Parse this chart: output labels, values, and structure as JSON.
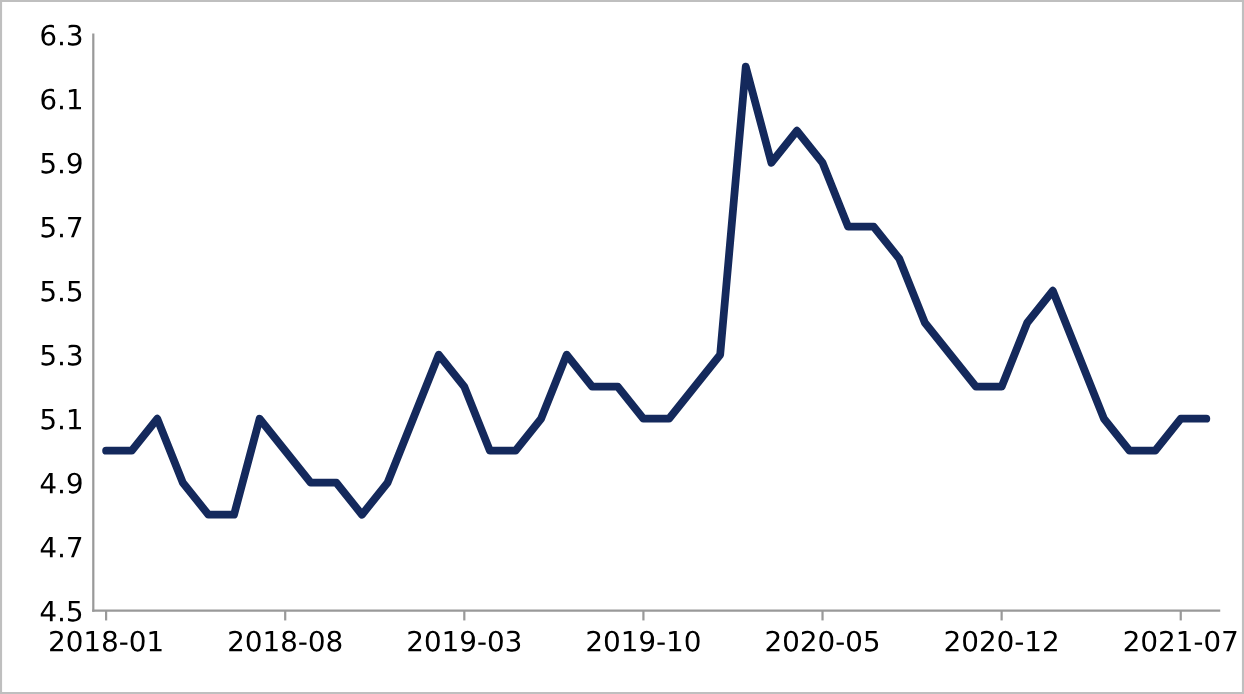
{
  "chart_data": {
    "type": "line",
    "categories": [
      "2018-01",
      null,
      null,
      null,
      null,
      null,
      null,
      "2018-08",
      null,
      null,
      null,
      null,
      null,
      null,
      "2019-03",
      null,
      null,
      null,
      null,
      null,
      null,
      "2019-10",
      null,
      null,
      null,
      null,
      null,
      null,
      "2020-05",
      null,
      null,
      null,
      null,
      null,
      null,
      "2020-12",
      null,
      null,
      null,
      null,
      null,
      null,
      "2021-07",
      null
    ],
    "series": [
      {
        "color": "#14295c",
        "values": [
          5.0,
          5.0,
          5.1,
          4.9,
          4.8,
          4.8,
          5.1,
          5.0,
          4.9,
          4.9,
          4.8,
          4.9,
          5.1,
          5.3,
          5.2,
          5.0,
          5.0,
          5.1,
          5.3,
          5.2,
          5.2,
          5.1,
          5.1,
          5.2,
          5.3,
          6.2,
          5.9,
          6.0,
          5.9,
          5.7,
          5.7,
          5.6,
          5.4,
          5.3,
          5.2,
          5.2,
          5.4,
          5.5,
          5.3,
          5.1,
          5.0,
          5.0,
          5.1,
          5.1
        ]
      }
    ],
    "ylim": [
      4.5,
      6.3
    ],
    "yticks": [
      4.5,
      4.7,
      4.9,
      5.1,
      5.3,
      5.5,
      5.7,
      5.9,
      6.1,
      6.3
    ],
    "grid": false,
    "legend": false,
    "marker": "none",
    "line_style": "solid"
  }
}
